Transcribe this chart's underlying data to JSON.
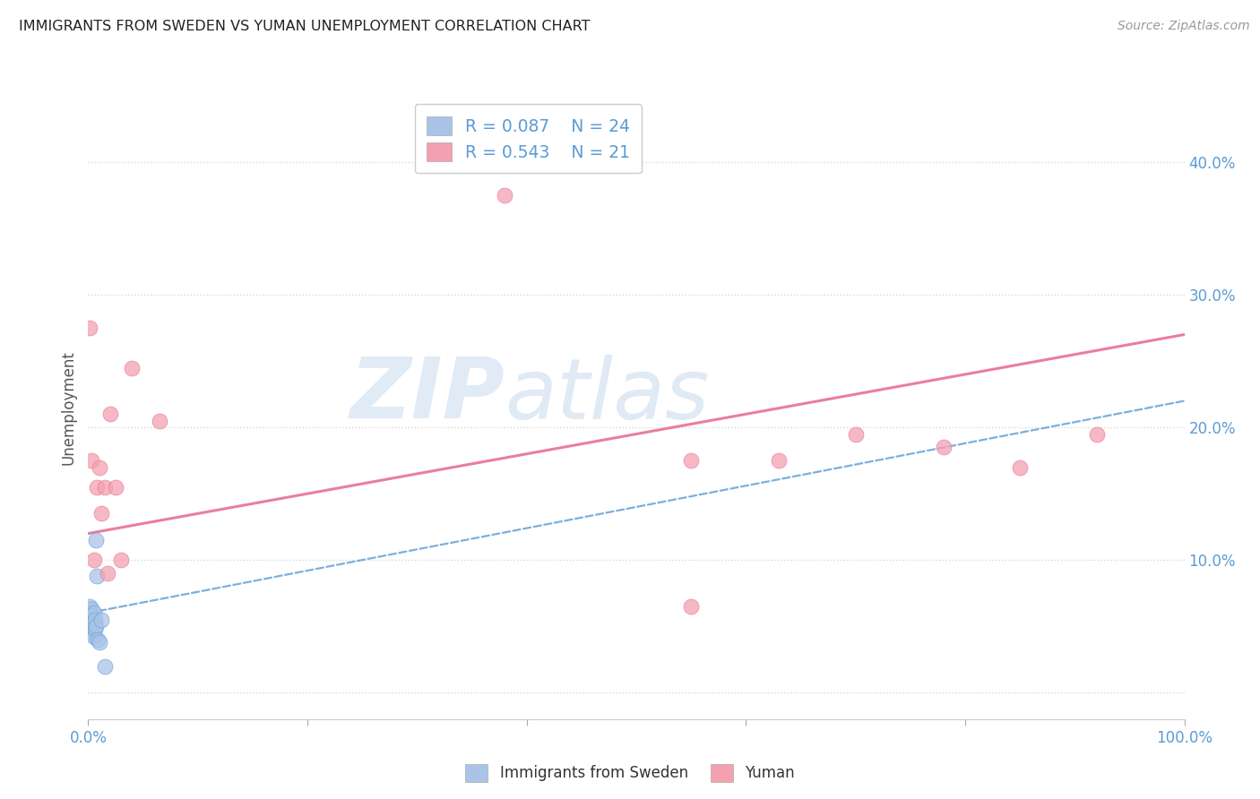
{
  "title": "IMMIGRANTS FROM SWEDEN VS YUMAN UNEMPLOYMENT CORRELATION CHART",
  "source": "Source: ZipAtlas.com",
  "ylabel": "Unemployment",
  "x_min": 0.0,
  "x_max": 1.0,
  "y_min": -0.02,
  "y_max": 0.45,
  "x_ticks": [
    0.0,
    0.2,
    0.4,
    0.6,
    0.8,
    1.0
  ],
  "x_tick_labels": [
    "0.0%",
    "",
    "",
    "",
    "",
    "100.0%"
  ],
  "y_ticks": [
    0.0,
    0.1,
    0.2,
    0.3,
    0.4
  ],
  "y_tick_labels_right": [
    "",
    "10.0%",
    "20.0%",
    "30.0%",
    "40.0%"
  ],
  "blue_scatter_x": [
    0.001,
    0.001,
    0.002,
    0.002,
    0.002,
    0.003,
    0.003,
    0.003,
    0.003,
    0.004,
    0.004,
    0.004,
    0.005,
    0.005,
    0.005,
    0.006,
    0.006,
    0.007,
    0.007,
    0.008,
    0.009,
    0.01,
    0.012,
    0.015
  ],
  "blue_scatter_y": [
    0.065,
    0.06,
    0.058,
    0.055,
    0.05,
    0.063,
    0.058,
    0.052,
    0.048,
    0.055,
    0.05,
    0.045,
    0.06,
    0.052,
    0.042,
    0.055,
    0.048,
    0.115,
    0.05,
    0.088,
    0.04,
    0.038,
    0.055,
    0.02
  ],
  "pink_scatter_x": [
    0.001,
    0.003,
    0.005,
    0.008,
    0.01,
    0.012,
    0.015,
    0.018,
    0.02,
    0.025,
    0.03,
    0.04,
    0.065,
    0.38,
    0.55,
    0.63,
    0.7,
    0.78,
    0.85,
    0.92,
    0.55
  ],
  "pink_scatter_y": [
    0.275,
    0.175,
    0.1,
    0.155,
    0.17,
    0.135,
    0.155,
    0.09,
    0.21,
    0.155,
    0.1,
    0.245,
    0.205,
    0.375,
    0.065,
    0.175,
    0.195,
    0.185,
    0.17,
    0.195,
    0.175
  ],
  "blue_color": "#aac4e8",
  "pink_color": "#f4a0b0",
  "blue_line_color": "#5b9bd5",
  "pink_line_color": "#e87090",
  "legend_R_blue": "R = 0.087",
  "legend_N_blue": "N = 24",
  "legend_R_pink": "R = 0.543",
  "legend_N_pink": "N = 21",
  "legend_label_blue": "Immigrants from Sweden",
  "legend_label_pink": "Yuman",
  "watermark_zip": "ZIP",
  "watermark_atlas": "atlas",
  "background_color": "#ffffff",
  "grid_color": "#d8d8d8",
  "blue_line_intercept": 0.06,
  "blue_line_slope": 0.16,
  "pink_line_intercept": 0.12,
  "pink_line_slope": 0.15
}
